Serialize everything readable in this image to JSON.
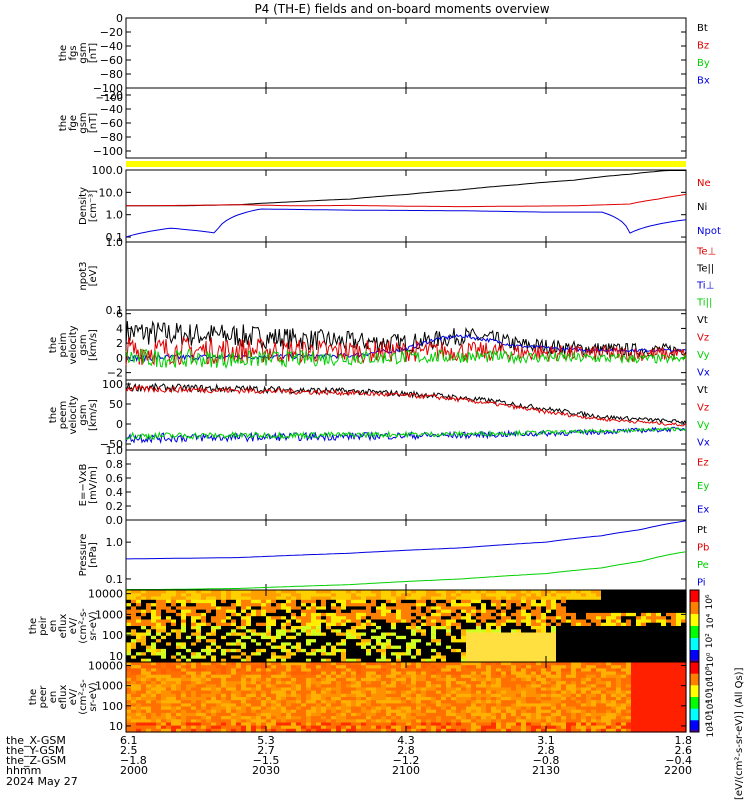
{
  "title": "P4 (TH-E) fields and on-board moments overview",
  "colors": {
    "black": "#000000",
    "red": "#e00000",
    "green": "#00d000",
    "blue": "#0000e0",
    "yellow": "#ffff00"
  },
  "chart_data": [
    {
      "type": "line",
      "ylabel_lines": [
        "the",
        "fgs",
        "gsm",
        "[nT]"
      ],
      "ylim": [
        -100,
        0
      ],
      "yticks": [
        "0",
        "−20",
        "−40",
        "−60",
        "−80",
        "−100"
      ],
      "legend": [
        {
          "name": "Bt",
          "color": "#000000"
        },
        {
          "name": "Bz",
          "color": "#e00000"
        },
        {
          "name": "By",
          "color": "#00d000"
        },
        {
          "name": "Bx",
          "color": "#0000e0"
        }
      ],
      "series": []
    },
    {
      "type": "line",
      "ylabel_lines": [
        "the",
        "fge",
        "gsm",
        "[nT]"
      ],
      "ylim": [
        -110,
        -10
      ],
      "yticks": [
        "−20",
        "−40",
        "−60",
        "−80",
        "−100"
      ],
      "overlap_tick": "−100",
      "legend": [],
      "series": []
    },
    {
      "type": "line",
      "ylabel_lines": [
        "Density",
        "[cm⁻³]"
      ],
      "scale": "log",
      "ylim": [
        0.06,
        100
      ],
      "yticks": [
        "100.0",
        "10.0",
        "1.0",
        "0.1"
      ],
      "legend": [
        {
          "name": "Ne",
          "color": "#e00000"
        },
        {
          "name": "Ni",
          "color": "#000000"
        },
        {
          "name": "Npot",
          "color": "#0000e0"
        }
      ],
      "series": [
        {
          "name": "Ni",
          "color": "#000000",
          "x": [
            0,
            10,
            20,
            30,
            40,
            50,
            60,
            70,
            80,
            90,
            100
          ],
          "y": [
            2.5,
            2.5,
            2.8,
            3.8,
            5,
            8,
            13,
            22,
            35,
            65,
            110
          ]
        },
        {
          "name": "Ne",
          "color": "#e00000",
          "x": [
            0,
            10,
            20,
            30,
            40,
            50,
            60,
            70,
            80,
            90,
            95,
            100
          ],
          "y": [
            2.5,
            2.6,
            2.8,
            2.5,
            2.6,
            2.4,
            2.3,
            2.4,
            2.5,
            3,
            5,
            8
          ]
        },
        {
          "name": "Npot",
          "color": "#0000e0",
          "x": [
            0,
            8,
            16,
            24,
            40,
            60,
            75,
            85,
            90,
            100
          ],
          "y": [
            0.1,
            0.25,
            0.15,
            1.8,
            1.6,
            1.5,
            1.3,
            1.3,
            0.15,
            0.6
          ]
        }
      ]
    },
    {
      "type": "line",
      "ylabel_lines": [
        "npot3",
        "[eV]"
      ],
      "scale": "log",
      "ylim": [
        0.1,
        1
      ],
      "yticks": [
        "1.0",
        "0.1"
      ],
      "legend": [
        {
          "name": "Te⊥",
          "color": "#e00000"
        },
        {
          "name": "Te||",
          "color": "#000000"
        },
        {
          "name": "Ti⊥",
          "color": "#0000e0"
        },
        {
          "name": "Ti||",
          "color": "#00d000"
        }
      ],
      "series": []
    },
    {
      "type": "line",
      "ylabel_lines": [
        "the",
        "peim",
        "velocity",
        "gsm",
        "[km/s]"
      ],
      "ylim": [
        -3,
        6.5
      ],
      "yticks": [
        "6",
        "4",
        "2",
        "0",
        "−2"
      ],
      "legend": [
        {
          "name": "Vt",
          "color": "#000000"
        },
        {
          "name": "Vz",
          "color": "#e00000"
        },
        {
          "name": "Vy",
          "color": "#00d000"
        },
        {
          "name": "Vx",
          "color": "#0000e0"
        }
      ],
      "series": [
        {
          "name": "Vt",
          "color": "#000000",
          "x": [
            0,
            10,
            20,
            30,
            40,
            50,
            55,
            60,
            65,
            70,
            80,
            90,
            100
          ],
          "y": [
            3.5,
            3.2,
            3,
            2.6,
            2.2,
            2,
            2.4,
            3,
            2.6,
            1.8,
            1.3,
            1.1,
            1.1
          ],
          "noise": 1.8
        },
        {
          "name": "Vx",
          "color": "#0000e0",
          "x": [
            0,
            40,
            50,
            55,
            60,
            65,
            70,
            80,
            100
          ],
          "y": [
            0,
            0.3,
            1.2,
            2.5,
            3,
            2.4,
            1.6,
            1.1,
            1
          ],
          "noise": 0.4
        },
        {
          "name": "Vz",
          "color": "#e00000",
          "x": [
            0,
            20,
            40,
            60,
            80,
            100
          ],
          "y": [
            1,
            1,
            0.9,
            0.9,
            0.6,
            0.5
          ],
          "noise": 2.0
        },
        {
          "name": "Vy",
          "color": "#00d000",
          "x": [
            0,
            20,
            40,
            60,
            80,
            100
          ],
          "y": [
            0,
            -0.2,
            0,
            0.2,
            0,
            -0.2
          ],
          "noise": 1.3
        }
      ]
    },
    {
      "type": "line",
      "ylabel_lines": [
        "the",
        "peem",
        "velocity",
        "gsm",
        "[km/s]"
      ],
      "ylim": [
        -65,
        110
      ],
      "yticks": [
        "100",
        "50",
        "0",
        "−50"
      ],
      "legend": [
        {
          "name": "Vt",
          "color": "#000000"
        },
        {
          "name": "Vz",
          "color": "#e00000"
        },
        {
          "name": "Vy",
          "color": "#00d000"
        },
        {
          "name": "Vx",
          "color": "#0000e0"
        }
      ],
      "series": [
        {
          "name": "Vt",
          "color": "#000000",
          "x": [
            0,
            20,
            40,
            55,
            65,
            75,
            85,
            100
          ],
          "y": [
            92,
            88,
            82,
            72,
            58,
            38,
            18,
            5
          ],
          "noise": 10
        },
        {
          "name": "Vz",
          "color": "#e00000",
          "x": [
            0,
            20,
            40,
            55,
            65,
            75,
            85,
            100
          ],
          "y": [
            88,
            84,
            78,
            68,
            52,
            30,
            12,
            -3
          ],
          "noise": 8
        },
        {
          "name": "Vx",
          "color": "#0000e0",
          "x": [
            0,
            30,
            60,
            80,
            100
          ],
          "y": [
            -35,
            -32,
            -28,
            -22,
            -12
          ],
          "noise": 12
        },
        {
          "name": "Vy",
          "color": "#00d000",
          "x": [
            0,
            30,
            60,
            80,
            100
          ],
          "y": [
            -30,
            -28,
            -25,
            -20,
            -12
          ],
          "noise": 9
        }
      ]
    },
    {
      "type": "line",
      "ylabel_lines": [
        "E=−VxB",
        "[mV/m]"
      ],
      "ylim": [
        0,
        1
      ],
      "yticks": [
        "1.0",
        "0.8",
        "0.6",
        "0.4",
        "0.2",
        "0.0"
      ],
      "legend": [
        {
          "name": "Ez",
          "color": "#e00000"
        },
        {
          "name": "Ey",
          "color": "#00d000"
        },
        {
          "name": "Ex",
          "color": "#0000e0"
        }
      ],
      "series": []
    },
    {
      "type": "line",
      "ylabel_lines": [
        "Pressure",
        "[nPa]"
      ],
      "scale": "log",
      "ylim": [
        0.05,
        4
      ],
      "yticks": [
        "1.0",
        "0.1"
      ],
      "legend": [
        {
          "name": "Pt",
          "color": "#000000"
        },
        {
          "name": "Pb",
          "color": "#e00000"
        },
        {
          "name": "Pe",
          "color": "#00d000"
        },
        {
          "name": "Pi",
          "color": "#0000e0"
        }
      ],
      "series": [
        {
          "name": "Pi",
          "color": "#0000e0",
          "x": [
            0,
            20,
            40,
            60,
            75,
            85,
            92,
            100
          ],
          "y": [
            0.35,
            0.38,
            0.5,
            0.7,
            1.0,
            1.5,
            2.2,
            3.8
          ]
        },
        {
          "name": "Pe",
          "color": "#00d000",
          "x": [
            0,
            20,
            40,
            60,
            75,
            85,
            92,
            100
          ],
          "y": [
            0.05,
            0.055,
            0.07,
            0.1,
            0.14,
            0.2,
            0.3,
            0.55
          ]
        }
      ]
    },
    {
      "type": "heatmap",
      "ylabel_lines": [
        "the",
        "peir",
        "en",
        "eflux",
        "eV/",
        "(cm²-s-",
        "sr-eV)"
      ],
      "scale": "log",
      "ylim": [
        5,
        15000
      ],
      "yticks": [
        "10000",
        "1000",
        "100",
        "10"
      ],
      "colorbar": {
        "labels": [
          "10⁶",
          "10⁴",
          "10²",
          "10⁰"
        ]
      }
    },
    {
      "type": "heatmap",
      "ylabel_lines": [
        "the",
        "peer",
        "en",
        "eflux",
        "eV/",
        "(cm²-s-",
        "sr-eV)"
      ],
      "scale": "log",
      "ylim": [
        5,
        15000
      ],
      "yticks": [
        "10000",
        "1000",
        "100",
        "10"
      ],
      "colorbar": {
        "labels": [
          "10⁸",
          "10⁶",
          "10⁵",
          "10⁴",
          "10³",
          "10²"
        ]
      }
    }
  ],
  "colorbar_label": "[eV/(cm²-s-sr-eV)] (All Qs)]",
  "footer": {
    "row_labels": [
      "the_X-GSM",
      "the_Y-GSM",
      "the_Z-GSM",
      "hhmm",
      "2024 May 27"
    ],
    "columns": [
      {
        "x": "6.1",
        "y": "2.5",
        "z": "−1.8",
        "t": "2000"
      },
      {
        "x": "5.3",
        "y": "2.7",
        "z": "−1.5",
        "t": "2030"
      },
      {
        "x": "4.3",
        "y": "2.8",
        "z": "−1.2",
        "t": "2100"
      },
      {
        "x": "3.1",
        "y": "2.8",
        "z": "−0.8",
        "t": "2130"
      },
      {
        "x": "1.8",
        "y": "2.6",
        "z": "−0.4",
        "t": "2200"
      }
    ]
  }
}
